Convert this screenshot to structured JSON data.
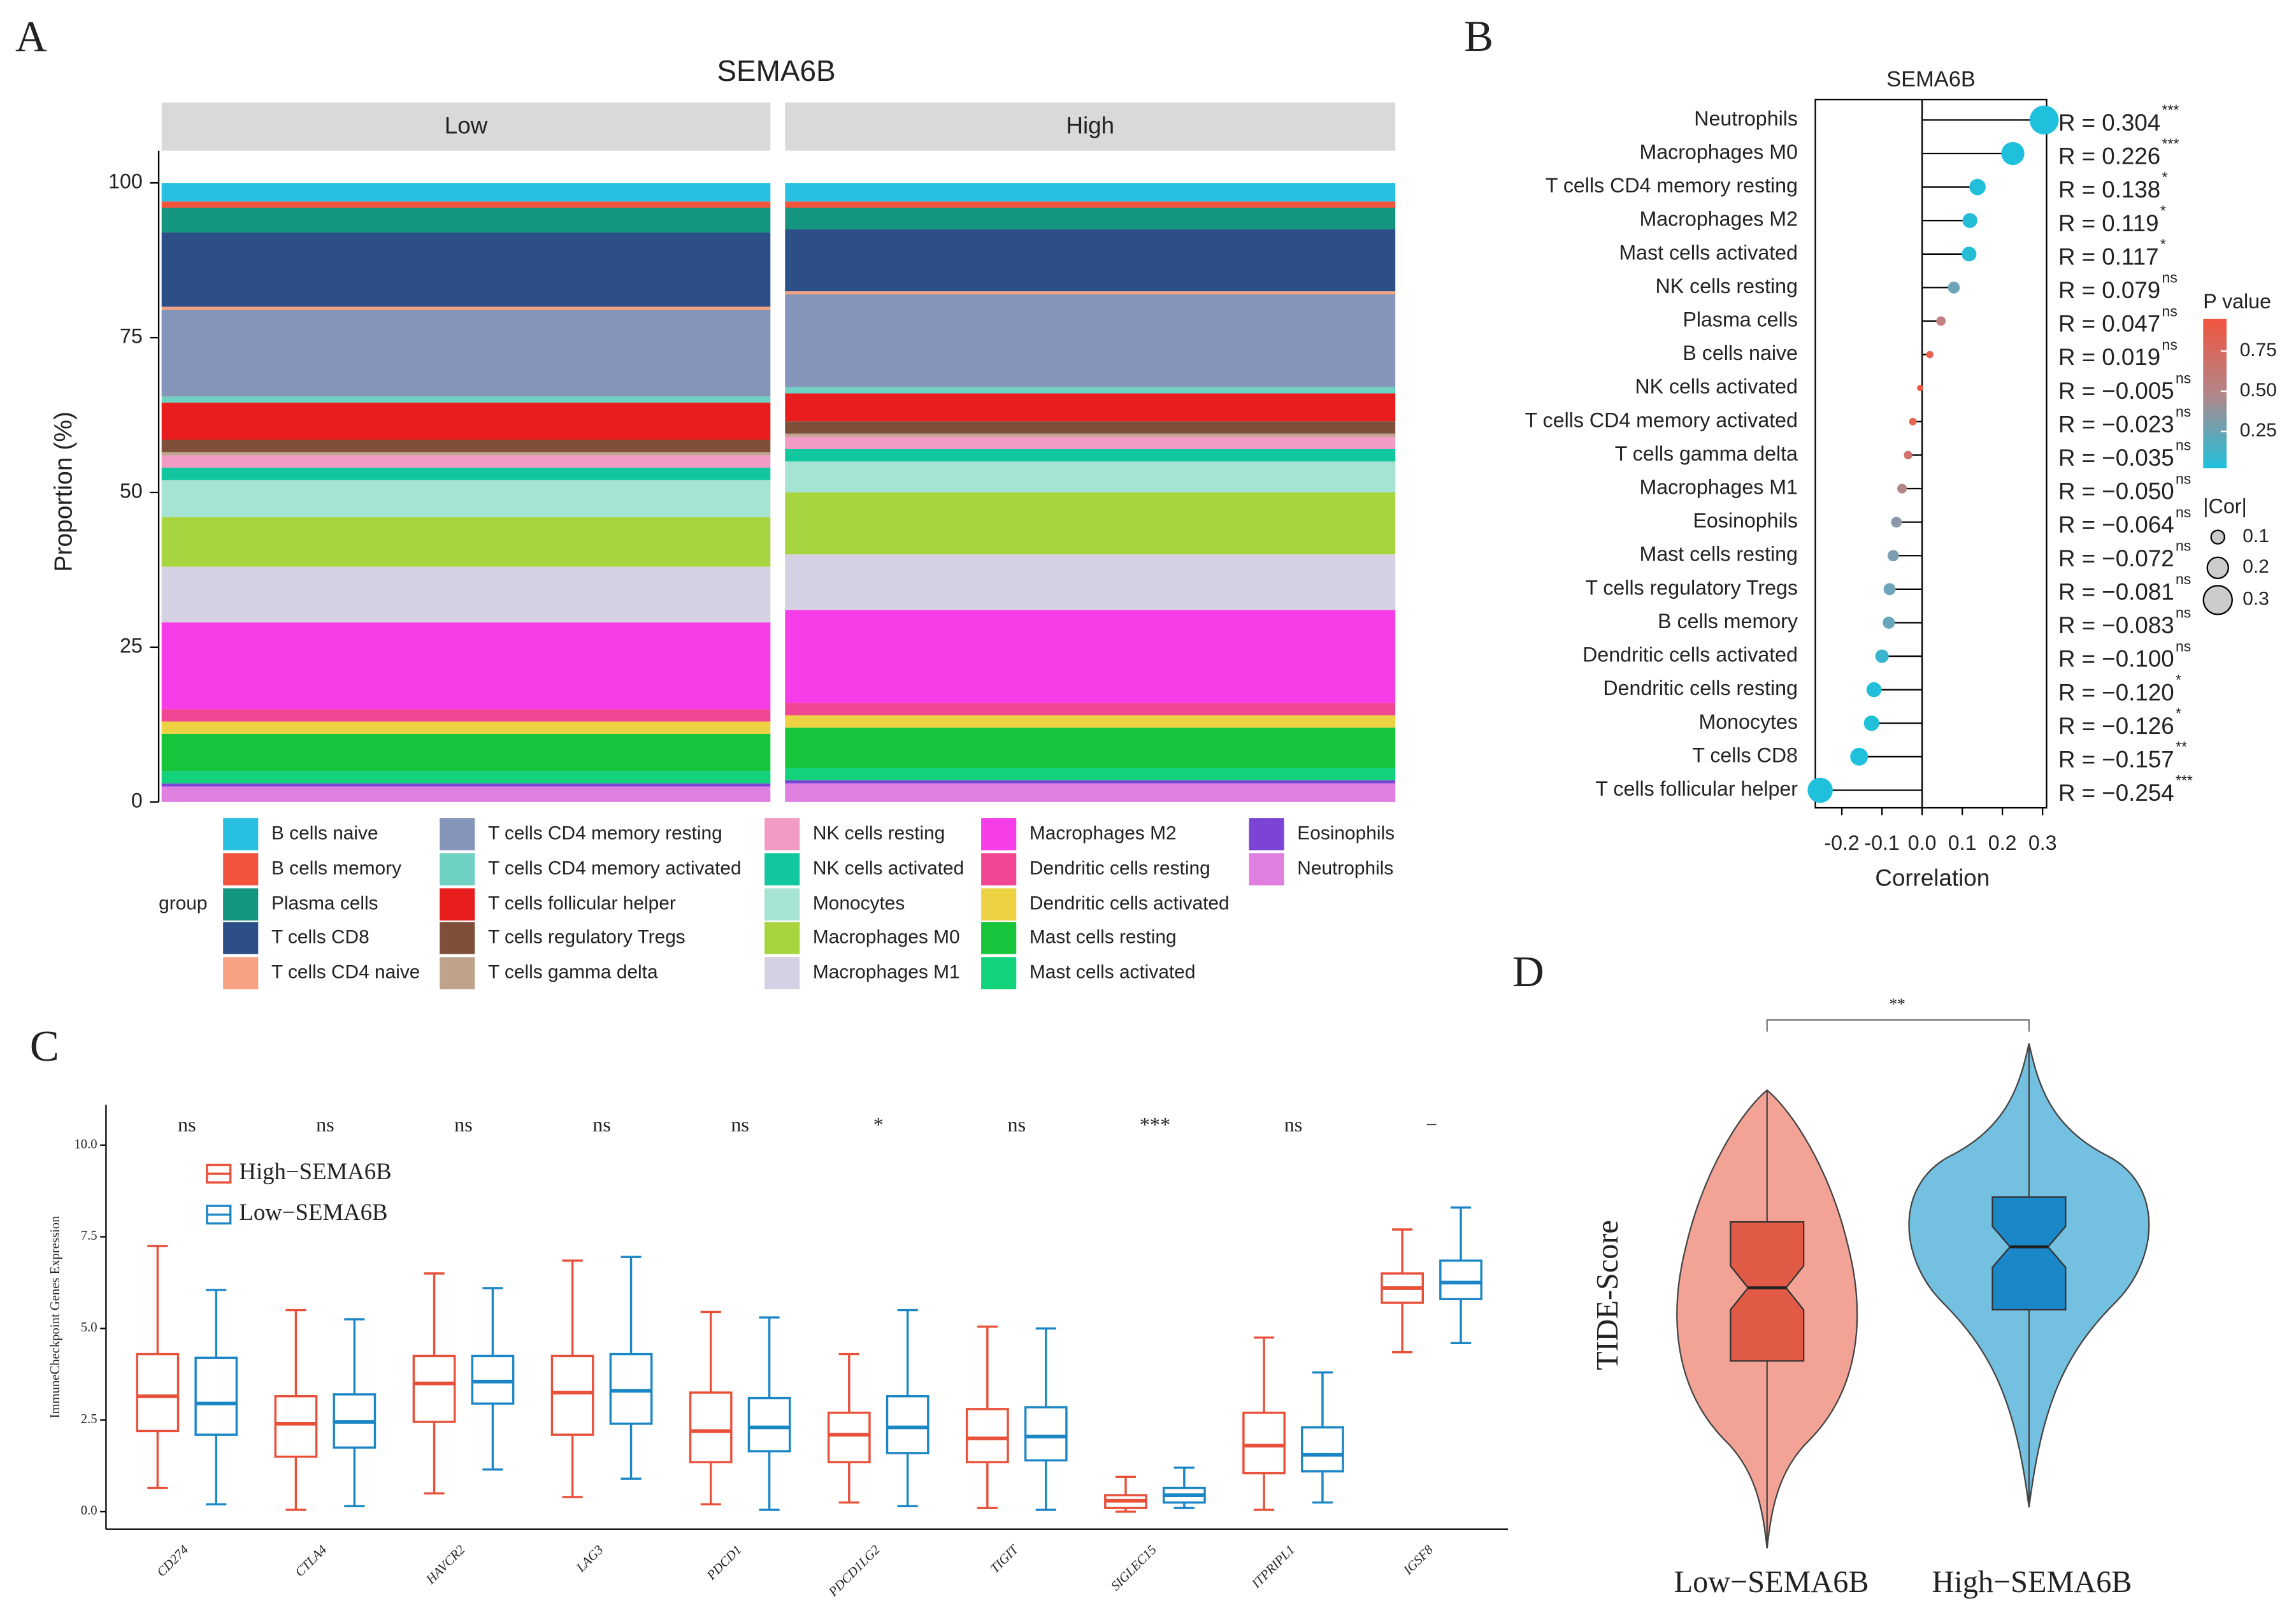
{
  "chart_data": [
    {
      "type": "stacked_bar",
      "panel": "A",
      "title": "SEMA6B",
      "categories": [
        "Low",
        "High"
      ],
      "ylabel": "Proportion (%)",
      "ylim": [
        0,
        100
      ],
      "yticks": [
        0,
        25,
        50,
        75,
        100
      ],
      "legend_title": "group",
      "series": [
        {
          "name": "B cells naive",
          "color": "#29bfe0",
          "values": [
            3,
            3
          ]
        },
        {
          "name": "B cells memory",
          "color": "#f2533d",
          "values": [
            1,
            1
          ]
        },
        {
          "name": "Plasma cells",
          "color": "#14957f",
          "values": [
            4,
            3.5
          ]
        },
        {
          "name": "T cells CD8",
          "color": "#2b4f86",
          "values": [
            12,
            10
          ]
        },
        {
          "name": "T cells CD4 naive",
          "color": "#f6a283",
          "values": [
            0.5,
            0.5
          ]
        },
        {
          "name": "T cells CD4 memory resting",
          "color": "#8595b9",
          "values": [
            14,
            15
          ]
        },
        {
          "name": "T cells CD4 memory activated",
          "color": "#6fd1c2",
          "values": [
            1,
            1
          ]
        },
        {
          "name": "T cells follicular helper",
          "color": "#e81d1d",
          "values": [
            6,
            4.5
          ]
        },
        {
          "name": "T cells regulatory Tregs",
          "color": "#7f5039",
          "values": [
            2,
            2
          ]
        },
        {
          "name": "T cells gamma delta",
          "color": "#bfa28b",
          "values": [
            0.5,
            0.5
          ]
        },
        {
          "name": "NK cells resting",
          "color": "#f19bc5",
          "values": [
            2,
            2
          ]
        },
        {
          "name": "NK cells activated",
          "color": "#12c79d",
          "values": [
            2,
            2
          ]
        },
        {
          "name": "Monocytes",
          "color": "#a7e3d3",
          "values": [
            6,
            5
          ]
        },
        {
          "name": "Macrophages M0",
          "color": "#a8d53f",
          "values": [
            8,
            10
          ]
        },
        {
          "name": "Macrophages M1",
          "color": "#d6d0e3",
          "values": [
            9,
            9
          ]
        },
        {
          "name": "Macrophages M2",
          "color": "#f53ee7",
          "values": [
            14,
            15
          ]
        },
        {
          "name": "Dendritic cells resting",
          "color": "#f04693",
          "values": [
            2,
            2
          ]
        },
        {
          "name": "Dendritic cells activated",
          "color": "#edd243",
          "values": [
            2,
            2
          ]
        },
        {
          "name": "Mast cells resting",
          "color": "#17c53d",
          "values": [
            6,
            6.5
          ]
        },
        {
          "name": "Mast cells activated",
          "color": "#12d27c",
          "values": [
            2,
            2
          ]
        },
        {
          "name": "Eosinophils",
          "color": "#7b43d6",
          "values": [
            0.5,
            0.5
          ]
        },
        {
          "name": "Neutrophils",
          "color": "#df7fe0",
          "values": [
            2.5,
            3
          ]
        }
      ]
    },
    {
      "type": "lollipop",
      "panel": "B",
      "title": "SEMA6B",
      "xlabel": "Correlation",
      "categories": [
        "Neutrophils",
        "Macrophages M0",
        "T cells CD4 memory resting",
        "Macrophages M2",
        "Mast cells activated",
        "NK cells resting",
        "Plasma cells",
        "B cells naive",
        "NK cells activated",
        "T cells CD4 memory activated",
        "T cells gamma delta",
        "Macrophages M1",
        "Eosinophils",
        "Mast cells resting",
        "T cells regulatory Tregs",
        "B cells memory",
        "Dendritic cells activated",
        "Dendritic cells resting",
        "Monocytes",
        "T cells CD8",
        "T cells follicular helper"
      ],
      "values": [
        0.304,
        0.226,
        0.138,
        0.119,
        0.117,
        0.079,
        0.047,
        0.019,
        -0.005,
        -0.023,
        -0.035,
        -0.05,
        -0.064,
        -0.072,
        -0.081,
        -0.083,
        -0.1,
        -0.12,
        -0.126,
        -0.157,
        -0.254
      ],
      "value_labels": [
        "R = 0.304",
        "R = 0.226",
        "R = 0.138",
        "R = 0.119",
        "R = 0.117",
        "R = 0.079",
        "R = 0.047",
        "R = 0.019",
        "R = −0.005",
        "R = −0.023",
        "R = −0.035",
        "R = −0.050",
        "R = −0.064",
        "R = −0.072",
        "R = −0.081",
        "R = −0.083",
        "R = −0.100",
        "R = −0.120",
        "R = −0.126",
        "R = −0.157",
        "R = −0.254"
      ],
      "significance": [
        "***",
        "***",
        "*",
        "*",
        "*",
        "ns",
        "ns",
        "ns",
        "ns",
        "ns",
        "ns",
        "ns",
        "ns",
        "ns",
        "ns",
        "ns",
        "ns",
        "*",
        "*",
        "**",
        "***"
      ],
      "colors": [
        "#1fc0dc",
        "#1fc0dc",
        "#22bfd8",
        "#24bdd7",
        "#25bdd6",
        "#6da5b6",
        "#c47f83",
        "#e8634f",
        "#f0553f",
        "#e6654f",
        "#d27371",
        "#b28588",
        "#8a99a9",
        "#7c9eb0",
        "#6ea5b8",
        "#6aa6b9",
        "#3ab5cf",
        "#22bfda",
        "#22bfda",
        "#1fc0dc",
        "#1fc0dc"
      ],
      "xlim": [
        -0.266,
        0.31
      ],
      "xticks": [
        -0.2,
        -0.1,
        {
          "value": 0,
          "label": "0.0"
        },
        0.1,
        0.2,
        0.3
      ],
      "color_title": "P value",
      "color_lim": [
        0.02,
        0.95
      ],
      "color_ticks": [
        0.25,
        {
          "value": 0.5,
          "label": "0.50"
        },
        0.75
      ],
      "size_title": "|Cor|",
      "size_ticks": [
        0.1,
        0.2,
        0.3
      ]
    },
    {
      "type": "boxplot",
      "panel": "C",
      "ylabel": "ImmuneCheckpoint Genes Expression",
      "categories": [
        "CD274",
        "CTLA4",
        "HAVCR2",
        "LAG3",
        "PDCD1",
        "PDCD1LG2",
        "TIGIT",
        "SIGLEC15",
        "ITPRIPL1",
        "IGSF8"
      ],
      "significance": [
        "ns",
        "ns",
        "ns",
        "ns",
        "ns",
        "*",
        "ns",
        "***",
        "ns",
        "−"
      ],
      "ylim": [
        -0.48,
        11.1
      ],
      "yticks": [
        {
          "value": 0,
          "label": "0.0"
        },
        2.5,
        {
          "value": 5,
          "label": "5.0"
        },
        7.5,
        {
          "value": 10,
          "label": "10.0"
        }
      ],
      "series": [
        {
          "name": "High−SEMA6B",
          "color": "#e8503a",
          "values": [
            [
              0.65,
              2.2,
              3.15,
              4.3,
              7.25
            ],
            [
              0.05,
              1.5,
              2.4,
              3.15,
              5.5
            ],
            [
              0.5,
              2.45,
              3.5,
              4.25,
              6.5
            ],
            [
              0.4,
              2.1,
              3.25,
              4.25,
              6.85
            ],
            [
              0.2,
              1.35,
              2.2,
              3.25,
              5.45
            ],
            [
              0.25,
              1.35,
              2.1,
              2.7,
              4.3
            ],
            [
              0.1,
              1.35,
              2.0,
              2.8,
              5.05
            ],
            [
              0.0,
              0.1,
              0.3,
              0.45,
              0.95
            ],
            [
              0.05,
              1.05,
              1.8,
              2.7,
              4.75
            ],
            [
              4.35,
              5.7,
              6.1,
              6.5,
              7.7
            ]
          ]
        },
        {
          "name": "Low−SEMA6B",
          "color": "#1b86c6",
          "values": [
            [
              0.2,
              2.1,
              2.95,
              4.2,
              6.05
            ],
            [
              0.15,
              1.75,
              2.45,
              3.2,
              5.25
            ],
            [
              1.15,
              2.95,
              3.55,
              4.25,
              6.1
            ],
            [
              0.9,
              2.4,
              3.3,
              4.3,
              6.95
            ],
            [
              0.05,
              1.65,
              2.3,
              3.1,
              5.3
            ],
            [
              0.15,
              1.6,
              2.3,
              3.15,
              5.5
            ],
            [
              0.05,
              1.4,
              2.05,
              2.85,
              5.0
            ],
            [
              0.1,
              0.25,
              0.45,
              0.65,
              1.2
            ],
            [
              0.25,
              1.1,
              1.55,
              2.3,
              3.8
            ],
            [
              4.6,
              5.8,
              6.25,
              6.85,
              8.3
            ]
          ]
        }
      ]
    },
    {
      "type": "violin",
      "panel": "D",
      "ylabel": "TIDE-Score",
      "categories": [
        "Low−SEMA6B",
        "High−SEMA6B"
      ],
      "significance": "**"
    }
  ]
}
